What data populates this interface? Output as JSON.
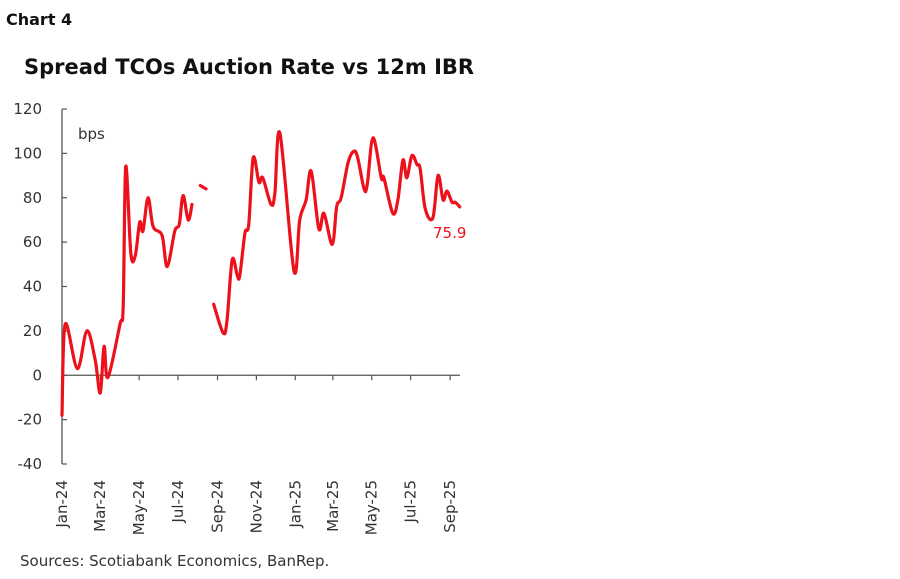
{
  "header": {
    "chart_number": "Chart 4",
    "sources": "Sources: Scotiabank Economics, BanRep."
  },
  "chart_data": {
    "type": "line",
    "title": "Spread TCOs Auction Rate vs 12m IBR",
    "ylabel": "bps",
    "xlabel": "",
    "ylim": [
      -40,
      120
    ],
    "yticks": [
      -40,
      -20,
      0,
      20,
      40,
      60,
      80,
      100,
      120
    ],
    "xlim": [
      "2024-01-01",
      "2025-09-30"
    ],
    "xtick_labels": [
      "Jan-24",
      "Mar-24",
      "May-24",
      "Jul-24",
      "Sep-24",
      "Nov-24",
      "Jan-25",
      "Mar-25",
      "May-25",
      "Jul-25",
      "Sep-25"
    ],
    "xtick_dates": [
      "2024-01-01",
      "2024-03-01",
      "2024-05-01",
      "2024-07-01",
      "2024-09-01",
      "2024-11-01",
      "2025-01-01",
      "2025-03-01",
      "2025-05-01",
      "2025-07-01",
      "2025-09-01"
    ],
    "grid": false,
    "color": "#EC111A",
    "last_value_label": "75.9",
    "series": [
      {
        "points": [
          [
            "2024-01-01",
            -18
          ],
          [
            "2024-01-06",
            23
          ],
          [
            "2024-01-25",
            3
          ],
          [
            "2024-02-09",
            20
          ],
          [
            "2024-02-22",
            7
          ],
          [
            "2024-03-01",
            -8
          ],
          [
            "2024-03-07",
            13
          ],
          [
            "2024-03-13",
            -1
          ],
          [
            "2024-04-01",
            23
          ],
          [
            "2024-04-06",
            31
          ],
          [
            "2024-04-10",
            94
          ],
          [
            "2024-04-18",
            55
          ],
          [
            "2024-04-25",
            54
          ],
          [
            "2024-05-02",
            69
          ],
          [
            "2024-05-07",
            65
          ],
          [
            "2024-05-15",
            80
          ],
          [
            "2024-05-23",
            67
          ],
          [
            "2024-06-06",
            63
          ],
          [
            "2024-06-14",
            49
          ],
          [
            "2024-06-26",
            65
          ],
          [
            "2024-07-03",
            68
          ],
          [
            "2024-07-09",
            81
          ],
          [
            "2024-07-17",
            70
          ],
          [
            "2024-07-23",
            77
          ],
          null,
          [
            "2024-08-05",
            85.5
          ],
          [
            "2024-08-14",
            84
          ],
          null,
          [
            "2024-08-26",
            32
          ],
          [
            "2024-09-10",
            19
          ],
          [
            "2024-09-16",
            25
          ],
          [
            "2024-09-24",
            52
          ],
          [
            "2024-10-02",
            45
          ],
          [
            "2024-10-06",
            45
          ],
          [
            "2024-10-14",
            64
          ],
          [
            "2024-10-20",
            68
          ],
          [
            "2024-10-27",
            98
          ],
          [
            "2024-11-05",
            87
          ],
          [
            "2024-11-11",
            89
          ],
          [
            "2024-11-24",
            77
          ],
          [
            "2024-11-30",
            82
          ],
          [
            "2024-12-08",
            109
          ],
          [
            "2024-12-30",
            47
          ],
          [
            "2025-01-08",
            70
          ],
          [
            "2025-01-18",
            79
          ],
          [
            "2025-01-26",
            92
          ],
          [
            "2025-02-07",
            66
          ],
          [
            "2025-02-15",
            73
          ],
          [
            "2025-02-28",
            59
          ],
          [
            "2025-03-07",
            76
          ],
          [
            "2025-03-14",
            80
          ],
          [
            "2025-03-25",
            96
          ],
          [
            "2025-04-03",
            101
          ],
          [
            "2025-04-09",
            98
          ],
          [
            "2025-04-19",
            84
          ],
          [
            "2025-04-24",
            86
          ],
          [
            "2025-05-03",
            107
          ],
          [
            "2025-05-16",
            89
          ],
          [
            "2025-05-20",
            89
          ],
          [
            "2025-06-03",
            73
          ],
          [
            "2025-06-11",
            79
          ],
          [
            "2025-06-19",
            97
          ],
          [
            "2025-06-25",
            89
          ],
          [
            "2025-07-03",
            99
          ],
          [
            "2025-07-11",
            95
          ],
          [
            "2025-07-16",
            93
          ],
          [
            "2025-07-24",
            75
          ],
          [
            "2025-08-05",
            71
          ],
          [
            "2025-08-13",
            90
          ],
          [
            "2025-08-21",
            79
          ],
          [
            "2025-08-27",
            83
          ],
          [
            "2025-09-04",
            78
          ],
          [
            "2025-09-09",
            78
          ],
          [
            "2025-09-16",
            75.9
          ]
        ]
      }
    ]
  }
}
